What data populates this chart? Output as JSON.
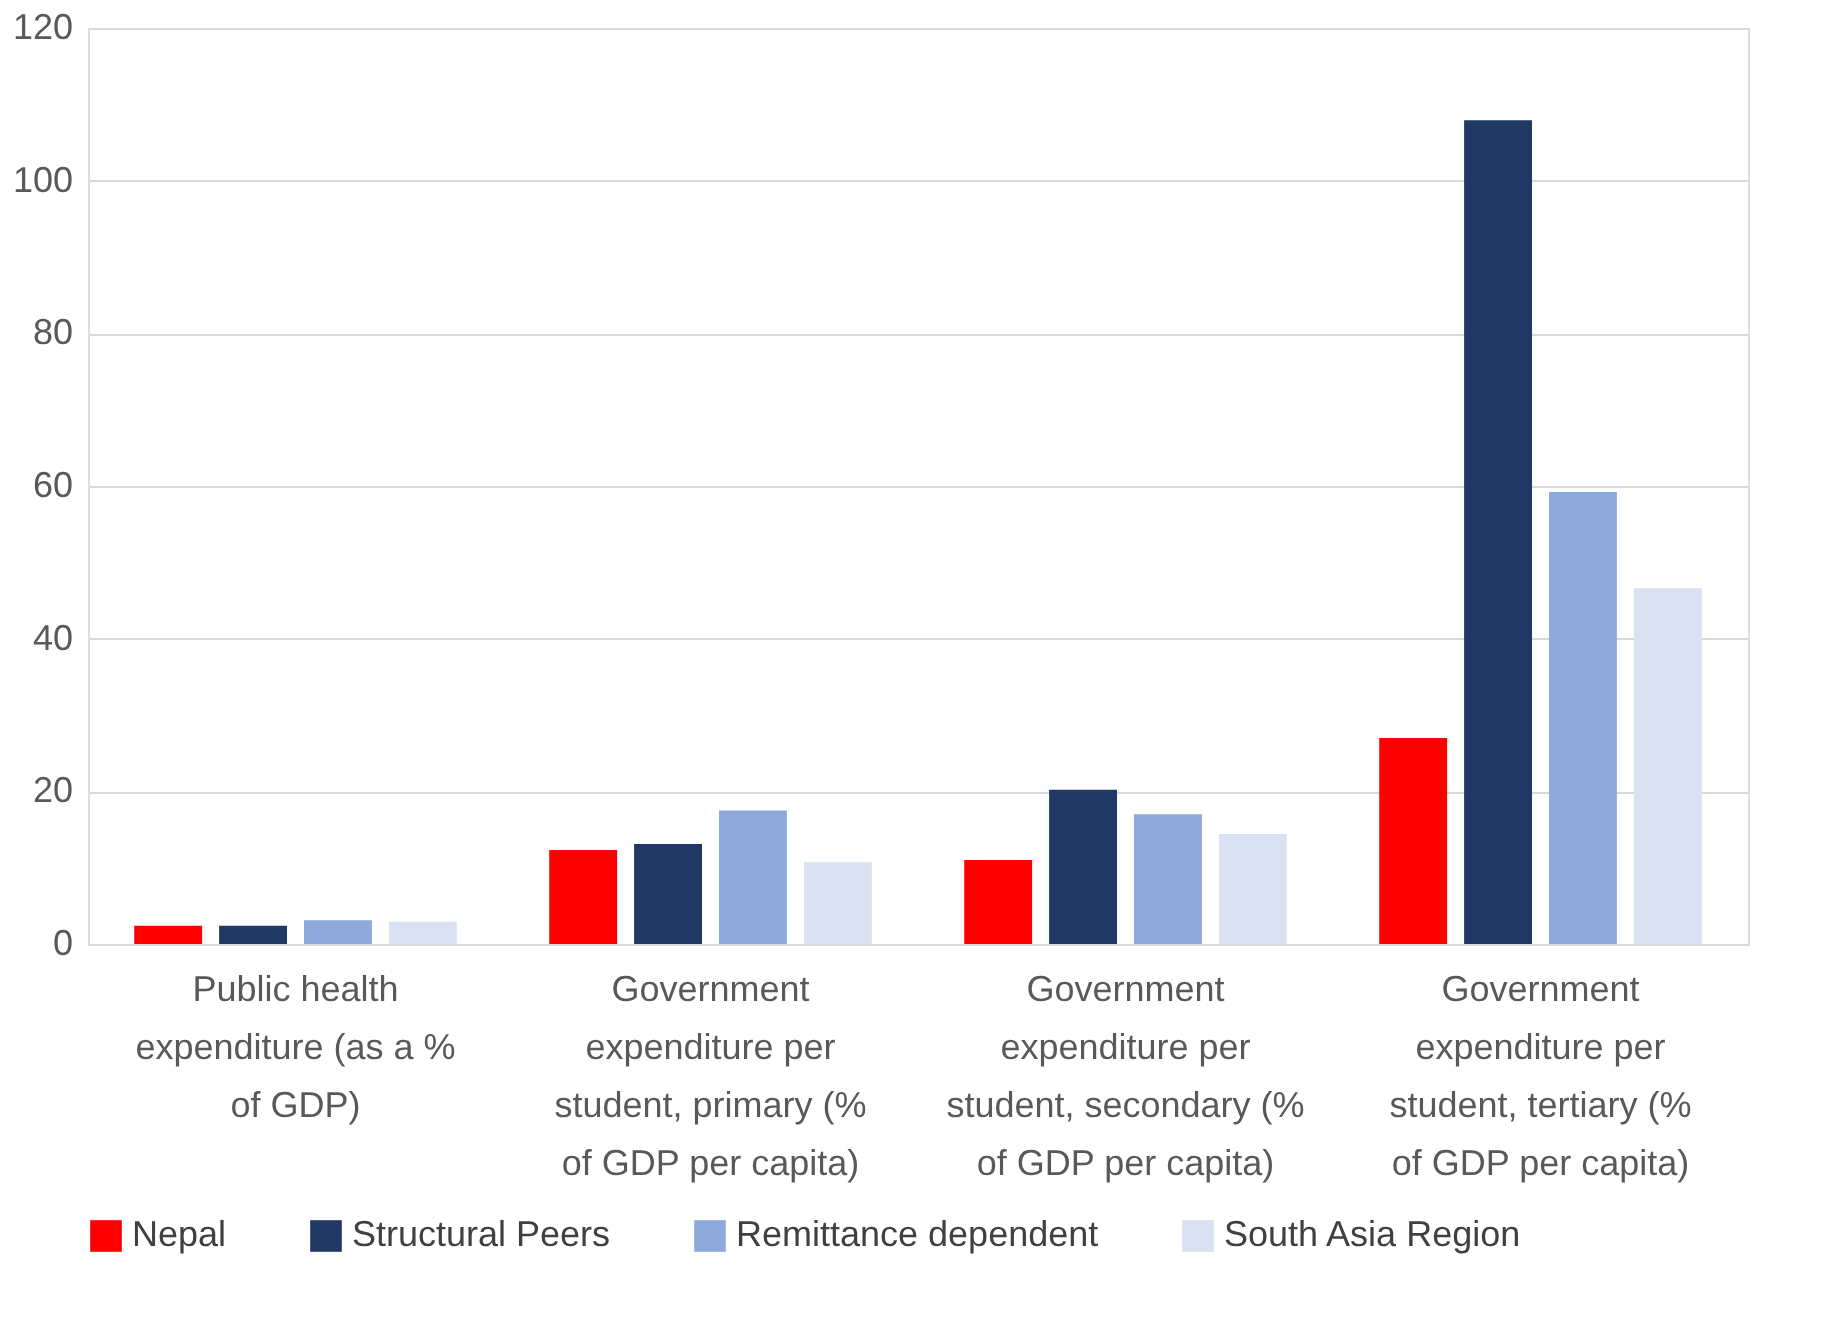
{
  "chart_data": {
    "type": "bar",
    "categories": [
      "Public health expenditure (as a % of GDP)",
      "Government expenditure per student, primary (% of GDP per capita)",
      "Government expenditure per student, secondary (% of GDP per capita)",
      "Government expenditure per student, tertiary (% of GDP per capita)"
    ],
    "series": [
      {
        "name": "Nepal",
        "color": "#ff0000",
        "values": [
          2.4,
          12.3,
          11.0,
          27.0
        ]
      },
      {
        "name": "Structural Peers",
        "color": "#1f3864",
        "values": [
          2.4,
          13.1,
          20.2,
          107.9
        ]
      },
      {
        "name": "Remittance dependent",
        "color": "#8eaadb",
        "values": [
          3.1,
          17.5,
          17.0,
          59.2
        ]
      },
      {
        "name": "South Asia Region",
        "color": "#d9e2f3",
        "values": [
          2.9,
          10.7,
          14.4,
          46.6
        ]
      }
    ],
    "ylim": [
      0,
      120
    ],
    "yticks": [
      0,
      20,
      40,
      60,
      80,
      100,
      120
    ],
    "grid": "y",
    "legend": "bottom"
  }
}
